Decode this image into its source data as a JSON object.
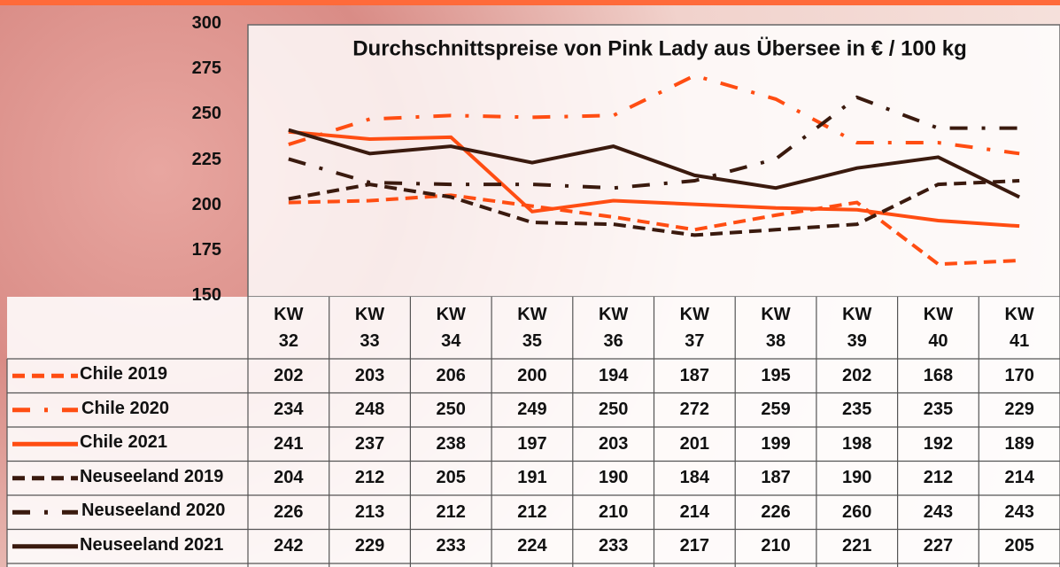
{
  "chart_data": {
    "type": "line",
    "title": "Durchschnittspreise von Pink Lady aus Übersee in € / 100 kg",
    "categories": [
      "KW 32",
      "KW 33",
      "KW 34",
      "KW 35",
      "KW 36",
      "KW 37",
      "KW 38",
      "KW 39",
      "KW 40",
      "KW 41"
    ],
    "series": [
      {
        "name": "Chile 2019",
        "color": "#ff4d12",
        "dash": "dashed",
        "values": [
          202,
          203,
          206,
          200,
          194,
          187,
          195,
          202,
          168,
          170
        ]
      },
      {
        "name": "Chile 2020",
        "color": "#ff4d12",
        "dash": "dashdot",
        "values": [
          234,
          248,
          250,
          249,
          250,
          272,
          259,
          235,
          235,
          229
        ]
      },
      {
        "name": "Chile 2021",
        "color": "#ff4d12",
        "dash": "solid",
        "values": [
          241,
          237,
          238,
          197,
          203,
          201,
          199,
          198,
          192,
          189
        ]
      },
      {
        "name": "Neuseeland 2019",
        "color": "#3a1a0e",
        "dash": "dashed",
        "values": [
          204,
          212,
          205,
          191,
          190,
          184,
          187,
          190,
          212,
          214
        ]
      },
      {
        "name": "Neuseeland 2020",
        "color": "#3a1a0e",
        "dash": "dashdot",
        "values": [
          226,
          213,
          212,
          212,
          210,
          214,
          226,
          260,
          243,
          243
        ]
      },
      {
        "name": "Neuseeland 2021",
        "color": "#3a1a0e",
        "dash": "solid",
        "values": [
          242,
          229,
          233,
          224,
          233,
          217,
          210,
          221,
          227,
          205
        ]
      }
    ],
    "ylim": [
      150,
      300
    ],
    "yticks": [
      150,
      175,
      200,
      225,
      250,
      275,
      300
    ],
    "grid": false
  }
}
